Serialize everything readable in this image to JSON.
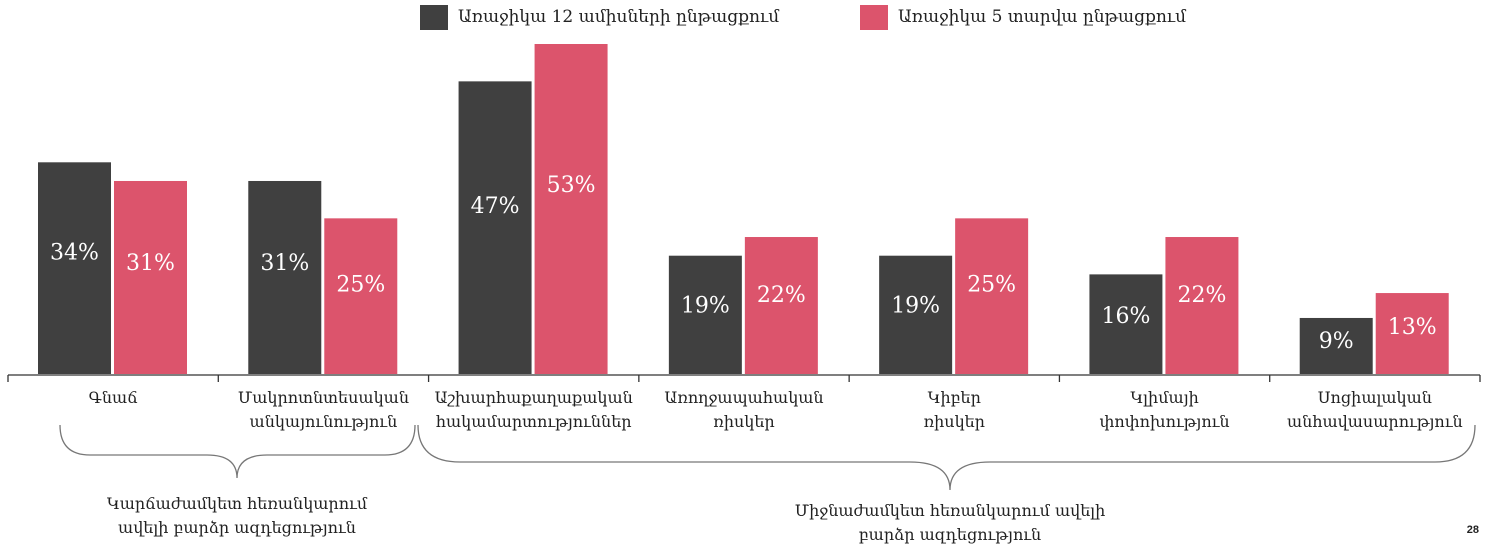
{
  "chart_data": {
    "type": "bar",
    "categories": [
      "Գնաճ",
      "Մակրոտնտեսական\nանկայունություն",
      "Աշխարհաքաղաքական\nհակամարտություններ",
      "Առողջապահական\nռիսկեր",
      "Կիբեր\nռիսկեր",
      "Կլիմայի\nփոփոխություն",
      "Սոցիալական\nանհավասարություն"
    ],
    "series": [
      {
        "name": "Առաջիկա 12 ամիսների ընթացքում",
        "color": "#404040",
        "values": [
          34,
          31,
          47,
          19,
          19,
          16,
          9
        ],
        "value_labels": [
          "34%",
          "31%",
          "47%",
          "19%",
          "19%",
          "16%",
          "9%"
        ]
      },
      {
        "name": "Առաջիկա 5 տարվա ընթացքում",
        "color": "#dc546c",
        "values": [
          31,
          25,
          53,
          22,
          25,
          22,
          13
        ],
        "value_labels": [
          "31%",
          "25%",
          "53%",
          "22%",
          "25%",
          "22%",
          "13%"
        ]
      }
    ],
    "annotations": [
      "Կարճաժամկետ հեռանկարում\nավելի բարձր ազդեցություն",
      "Միջնաժամկետ հեռանկարում ավելի\nբարձր ազդեցություն"
    ],
    "page_number": "28"
  }
}
